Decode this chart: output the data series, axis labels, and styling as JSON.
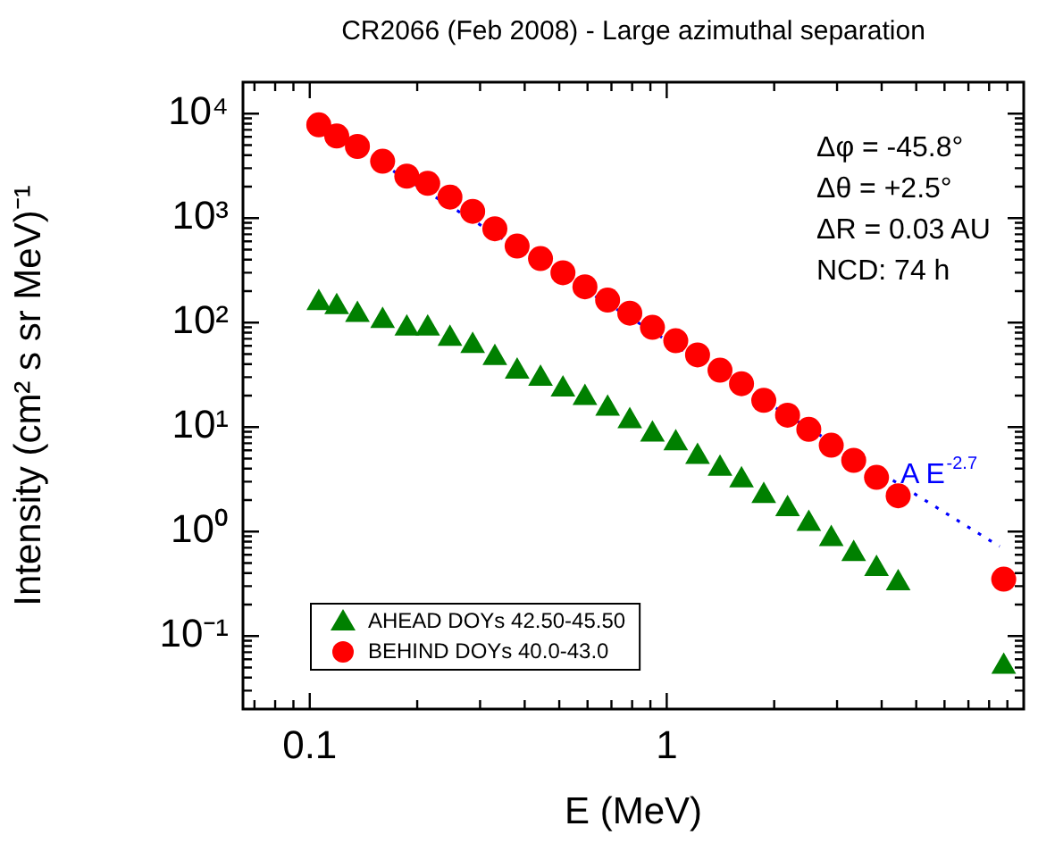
{
  "chart_data": {
    "type": "scatter",
    "title": "CR2066 (Feb 2008) - Large azimuthal separation",
    "xlabel": "E (MeV)",
    "ylabel": "Intensity (cm² s sr MeV)⁻¹",
    "log": "xy",
    "legend": "bottom left",
    "grid": false,
    "xlim": [
      0.065,
      10
    ],
    "xticks": [
      {
        "value": 0.07,
        "label": null
      },
      {
        "value": 0.08,
        "label": null
      },
      {
        "value": 0.09,
        "label": null
      },
      0.1,
      {
        "value": 0.2,
        "label": null
      },
      {
        "value": 0.3,
        "label": null
      },
      {
        "value": 0.4,
        "label": null
      },
      {
        "value": 0.5,
        "label": null
      },
      {
        "value": 0.6,
        "label": null
      },
      {
        "value": 0.7,
        "label": null
      },
      {
        "value": 0.8,
        "label": null
      },
      {
        "value": 0.9,
        "label": null
      },
      1,
      {
        "value": 2,
        "label": null
      },
      {
        "value": 3,
        "label": null
      },
      {
        "value": 4,
        "label": null
      },
      {
        "value": 5,
        "label": null
      },
      {
        "value": 6,
        "label": null
      },
      {
        "value": 7,
        "label": null
      },
      {
        "value": 8,
        "label": null
      },
      {
        "value": 9,
        "label": null
      }
    ],
    "ylim": [
      0.02,
      20000
    ],
    "yticks": [
      {
        "value": 0.03,
        "label": null
      },
      {
        "value": 0.04,
        "label": null
      },
      {
        "value": 0.05,
        "label": null
      },
      {
        "value": 0.06,
        "label": null
      },
      {
        "value": 0.07,
        "label": null
      },
      {
        "value": 0.08,
        "label": null
      },
      {
        "value": 0.09,
        "label": null
      },
      {
        "value": 0.1,
        "label": "10⁻¹"
      },
      {
        "value": 0.2,
        "label": null
      },
      {
        "value": 0.3,
        "label": null
      },
      {
        "value": 0.4,
        "label": null
      },
      {
        "value": 0.5,
        "label": null
      },
      {
        "value": 0.6,
        "label": null
      },
      {
        "value": 0.7,
        "label": null
      },
      {
        "value": 0.8,
        "label": null
      },
      {
        "value": 0.9,
        "label": null
      },
      {
        "value": 1,
        "label": "10⁰"
      },
      {
        "value": 2,
        "label": null
      },
      {
        "value": 3,
        "label": null
      },
      {
        "value": 4,
        "label": null
      },
      {
        "value": 5,
        "label": null
      },
      {
        "value": 6,
        "label": null
      },
      {
        "value": 7,
        "label": null
      },
      {
        "value": 8,
        "label": null
      },
      {
        "value": 9,
        "label": null
      },
      {
        "value": 10,
        "label": "10¹"
      },
      {
        "value": 20,
        "label": null
      },
      {
        "value": 30,
        "label": null
      },
      {
        "value": 40,
        "label": null
      },
      {
        "value": 50,
        "label": null
      },
      {
        "value": 60,
        "label": null
      },
      {
        "value": 70,
        "label": null
      },
      {
        "value": 80,
        "label": null
      },
      {
        "value": 90,
        "label": null
      },
      {
        "value": 100,
        "label": "10²"
      },
      {
        "value": 200,
        "label": null
      },
      {
        "value": 300,
        "label": null
      },
      {
        "value": 400,
        "label": null
      },
      {
        "value": 500,
        "label": null
      },
      {
        "value": 600,
        "label": null
      },
      {
        "value": 700,
        "label": null
      },
      {
        "value": 800,
        "label": null
      },
      {
        "value": 900,
        "label": null
      },
      {
        "value": 1000,
        "label": "10³"
      },
      {
        "value": 2000,
        "label": null
      },
      {
        "value": 3000,
        "label": null
      },
      {
        "value": 4000,
        "label": null
      },
      {
        "value": 5000,
        "label": null
      },
      {
        "value": 6000,
        "label": null
      },
      {
        "value": 7000,
        "label": null
      },
      {
        "value": 8000,
        "label": null
      },
      {
        "value": 9000,
        "label": null
      },
      {
        "value": 10000,
        "label": "10⁴"
      }
    ],
    "x": [
      0.106,
      0.119,
      0.136,
      0.16,
      0.187,
      0.214,
      0.247,
      0.286,
      0.33,
      0.381,
      0.443,
      0.512,
      0.59,
      0.683,
      0.788,
      0.912,
      1.06,
      1.22,
      1.41,
      1.62,
      1.87,
      2.18,
      2.5,
      2.89,
      3.34,
      3.87,
      4.45,
      8.79
    ],
    "series": [
      {
        "name": "AHEAD DOYs 42.50-45.50",
        "type": "scatter",
        "marker": "triangle",
        "color": "#008000",
        "values": [
          154,
          141,
          119,
          104,
          88,
          88,
          70,
          60,
          46,
          34,
          29,
          23,
          19,
          15,
          11.4,
          8.5,
          7.0,
          5.2,
          4.0,
          3.1,
          2.2,
          1.64,
          1.19,
          0.85,
          0.61,
          0.44,
          0.32,
          0.051
        ]
      },
      {
        "name": "BEHIND DOYs 40.0-43.0",
        "type": "scatter",
        "marker": "circle",
        "color": "#ff0000",
        "values": [
          7800,
          6100,
          4850,
          3500,
          2520,
          2150,
          1590,
          1160,
          790,
          540,
          410,
          300,
          220,
          164,
          123,
          90,
          67,
          49,
          35,
          26,
          18,
          13,
          9.5,
          6.7,
          4.8,
          3.3,
          2.2,
          0.35
        ]
      },
      {
        "type": "line",
        "marker": "none",
        "line_style": "dotted",
        "color": "#0000ff",
        "x": [
          0.106,
          8.56
        ],
        "values": [
          7800,
          0.72
        ]
      }
    ],
    "annotations": [
      "Δφ = -45.8°",
      "Δθ = +2.5°",
      "ΔR = 0.03 AU",
      "NCD: 74 h",
      "A E$^{-2.7}$"
    ]
  }
}
